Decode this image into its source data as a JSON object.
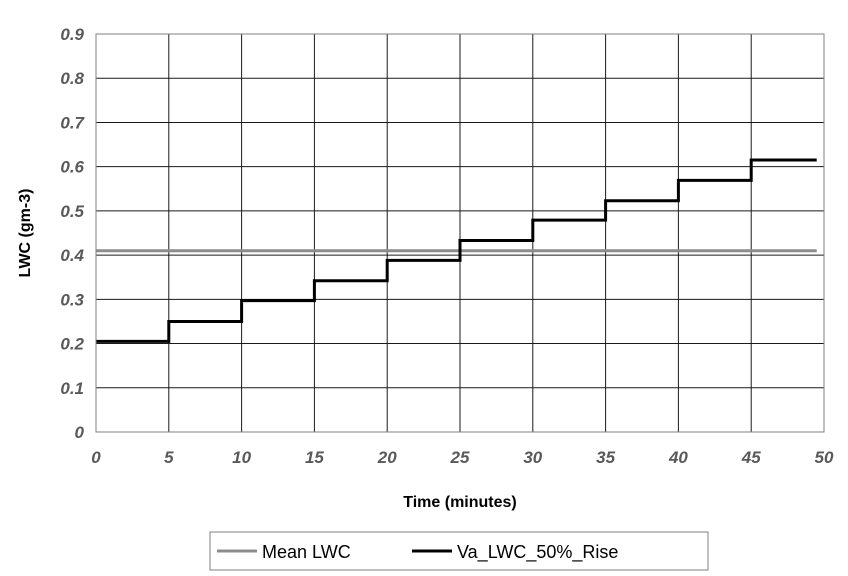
{
  "chart_data": {
    "type": "line",
    "title": "",
    "xlabel": "Time (minutes)",
    "ylabel": "LWC (gm-3)",
    "xlim": [
      0,
      50
    ],
    "ylim": [
      0,
      0.9
    ],
    "x_ticks": [
      "0",
      "5",
      "10",
      "15",
      "20",
      "25",
      "30",
      "35",
      "40",
      "45",
      "50"
    ],
    "y_ticks": [
      "0",
      "0.1",
      "0.2",
      "0.3",
      "0.4",
      "0.5",
      "0.6",
      "0.7",
      "0.8",
      "0.9"
    ],
    "grid": true,
    "legend_position": "bottom",
    "series": [
      {
        "name": "Mean LWC",
        "color": "#8c8c8c",
        "step": false,
        "x": [
          0,
          49.5
        ],
        "y": [
          0.41,
          0.41
        ]
      },
      {
        "name": "Va_LWC_50%_Rise",
        "color": "#000000",
        "step": true,
        "x": [
          0,
          5,
          10,
          15,
          20,
          25,
          30,
          35,
          40,
          45,
          49.5
        ],
        "y": [
          0.205,
          0.25,
          0.297,
          0.342,
          0.388,
          0.433,
          0.479,
          0.523,
          0.569,
          0.615,
          0.615
        ]
      }
    ]
  }
}
